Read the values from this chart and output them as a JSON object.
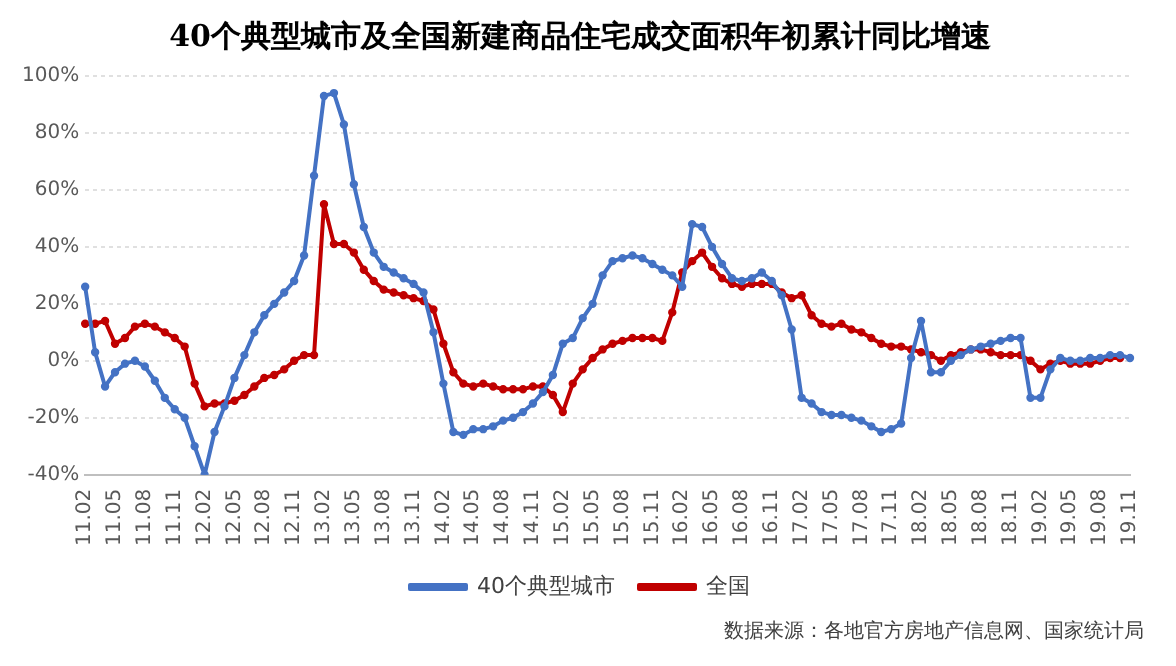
{
  "chart_data": {
    "type": "line",
    "title": "40个典型城市及全国新建商品住宅成交面积年初累计同比增速",
    "categories": [
      "11.02",
      null,
      null,
      "11.05",
      null,
      null,
      "11.08",
      null,
      null,
      "11.11",
      null,
      null,
      "12.02",
      null,
      null,
      "12.05",
      null,
      null,
      "12.08",
      null,
      null,
      "12.11",
      null,
      null,
      "13.02",
      null,
      null,
      "13.05",
      null,
      null,
      "13.08",
      null,
      null,
      "13.11",
      null,
      null,
      "14.02",
      null,
      null,
      "14.05",
      null,
      null,
      "14.08",
      null,
      null,
      "14.11",
      null,
      null,
      "15.02",
      null,
      null,
      "15.05",
      null,
      null,
      "15.08",
      null,
      null,
      "15.11",
      null,
      null,
      "16.02",
      null,
      null,
      "16.05",
      null,
      null,
      "16.08",
      null,
      null,
      "16.11",
      null,
      null,
      "17.02",
      null,
      null,
      "17.05",
      null,
      null,
      "17.08",
      null,
      null,
      "17.11",
      null,
      null,
      "18.02",
      null,
      null,
      "18.05",
      null,
      null,
      "18.08",
      null,
      null,
      "18.11",
      null,
      null,
      "19.02",
      null,
      null,
      "19.05",
      null,
      null,
      "19.08",
      null,
      null,
      "19.11"
    ],
    "series": [
      {
        "name": "40个典型城市",
        "color": "#4472c4",
        "values": [
          26,
          3,
          -9,
          -4,
          -1,
          0,
          -2,
          -7,
          -13,
          -17,
          -20,
          -30,
          -40,
          -25,
          -16,
          -6,
          2,
          10,
          16,
          20,
          24,
          28,
          37,
          65,
          93,
          94,
          83,
          62,
          47,
          38,
          33,
          31,
          29,
          27,
          24,
          10,
          -8,
          -25,
          -26,
          -24,
          -24,
          -23,
          -21,
          -20,
          -18,
          -15,
          -11,
          -5,
          6,
          8,
          15,
          20,
          30,
          35,
          36,
          37,
          36,
          34,
          32,
          30,
          26,
          48,
          47,
          40,
          34,
          29,
          28,
          29,
          31,
          28,
          23,
          11,
          -13,
          -15,
          -18,
          -19,
          -19,
          -20,
          -21,
          -23,
          -25,
          -24,
          -22,
          1,
          14,
          -4,
          -4,
          0,
          2,
          4,
          5,
          6,
          7,
          8,
          8,
          -13,
          -13,
          -3,
          1,
          0,
          0,
          1,
          1,
          2,
          2,
          1
        ]
      },
      {
        "name": "全国",
        "color": "#c00000",
        "values": [
          13,
          13,
          14,
          6,
          8,
          12,
          13,
          12,
          10,
          8,
          5,
          -8,
          -16,
          -15,
          -15,
          -14,
          -12,
          -9,
          -6,
          -5,
          -3,
          0,
          2,
          2,
          55,
          41,
          41,
          38,
          32,
          28,
          25,
          24,
          23,
          22,
          21,
          18,
          6,
          -4,
          -8,
          -9,
          -8,
          -9,
          -10,
          -10,
          -10,
          -9,
          -9,
          -12,
          -18,
          -8,
          -3,
          1,
          4,
          6,
          7,
          8,
          8,
          8,
          7,
          17,
          31,
          35,
          38,
          33,
          29,
          27,
          26,
          27,
          27,
          27,
          24,
          22,
          23,
          16,
          13,
          12,
          13,
          11,
          10,
          8,
          6,
          5,
          5,
          4,
          3,
          2,
          0,
          2,
          3,
          4,
          4,
          3,
          2,
          2,
          2,
          0,
          -3,
          -1,
          0,
          -1,
          -1,
          -1,
          0,
          1,
          1,
          null
        ]
      }
    ],
    "ylim": [
      -40,
      100
    ],
    "yticks": [
      {
        "value": -40,
        "label": "-40%"
      },
      {
        "value": -20,
        "label": "-20%"
      },
      {
        "value": 0,
        "label": "0%"
      },
      {
        "value": 20,
        "label": "20%"
      },
      {
        "value": 40,
        "label": "40%"
      },
      {
        "value": 60,
        "label": "60%"
      },
      {
        "value": 80,
        "label": "80%"
      },
      {
        "value": 100,
        "label": "100%"
      }
    ],
    "grid": "y",
    "legend": "bottom",
    "marker": "circle",
    "line_style": "solid",
    "annotations": [
      "数据来源：各地官方房地产信息网、国家统计局"
    ]
  }
}
